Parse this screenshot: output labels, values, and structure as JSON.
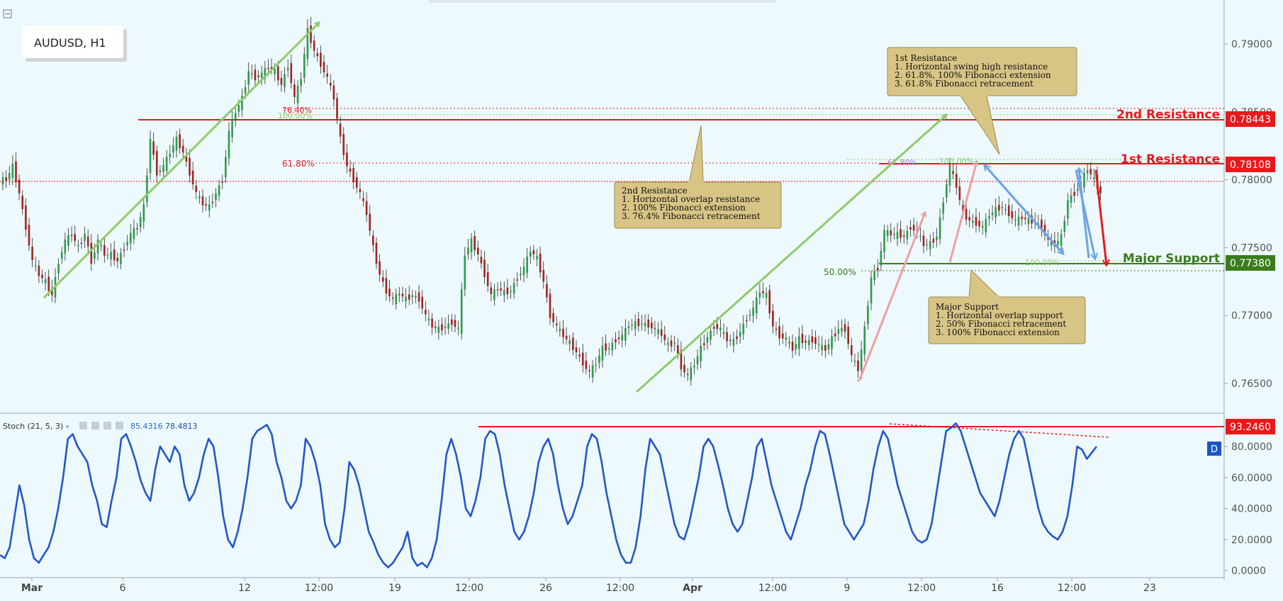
{
  "symbol_label": "AUDUSD, H1",
  "indicator": {
    "name": "Stoch (21, 5, 3)",
    "value1": "85.4316",
    "value2": "78.4813",
    "d_badge": "D"
  },
  "levels": {
    "second_resistance": {
      "label": "2nd Resistance",
      "value": "0.78443",
      "color": "#e8191b"
    },
    "first_resistance": {
      "label": "1st Resistance",
      "value": "0.78108",
      "color": "#e8191b"
    },
    "major_support": {
      "label": "Major Support",
      "value": "0.77380",
      "color": "#3a7d1c"
    },
    "stoch_level": {
      "value": "93.2460",
      "color": "#e8191b"
    }
  },
  "fib_labels": {
    "left_764": "76.40%",
    "left_100": "100.00%",
    "left_618": "61.80%",
    "right_618": "61.80%",
    "right_100_top": "100.00%",
    "right_50": "50.00%",
    "right_100_bottom": "100.00%"
  },
  "callouts": {
    "first": {
      "lines": [
        "1st Resistance",
        "1. Horizontal swing high resistance",
        "2. 61.8%, 100% Fibonacci extension",
        "3. 61.8% Fibonacci retracement"
      ]
    },
    "second": {
      "lines": [
        "2nd Resistance",
        "1. Horizontal overlap resistance",
        "2. 100% Fibonacci extension",
        "3. 76.4% Fibonacci retracement"
      ]
    },
    "support": {
      "lines": [
        "Major Support",
        "1. Horizontal overlap support",
        "2. 50% Fibonacci retracement",
        "3. 100% Fibonacci extension"
      ]
    }
  },
  "colors": {
    "background": "#edf9fc",
    "candle_up": "#2e9a4a",
    "candle_down": "#a3221e",
    "stoch_line": "#2456c9",
    "callout_fill": "#d8c585",
    "green_arrow": "#8fca6a",
    "pink_arrow": "#eea0a2",
    "blue_arrow": "#6fa3e8"
  },
  "chart_data": [
    {
      "type": "candlestick",
      "title": "AUDUSD, H1",
      "y_axis_ticks": [
        "0.79000",
        "0.78500",
        "0.78000",
        "0.77500",
        "0.77000",
        "0.76500"
      ],
      "ylim": [
        0.7628,
        0.7925
      ],
      "x_tick_labels": [
        "Mar",
        "6",
        "12",
        "12:00",
        "19",
        "12:00",
        "26",
        "12:00",
        "Apr",
        "12:00",
        "9",
        "12:00",
        "16",
        "12:00",
        "23"
      ],
      "series": [
        {
          "name": "AUDUSD",
          "values": [
            0.78,
            0.781,
            0.779,
            0.7765,
            0.774,
            0.773,
            0.7725,
            0.7715,
            0.774,
            0.7755,
            0.776,
            0.775,
            0.776,
            0.774,
            0.7755,
            0.7745,
            0.7745,
            0.774,
            0.775,
            0.776,
            0.7765,
            0.778,
            0.783,
            0.7805,
            0.781,
            0.782,
            0.783,
            0.782,
            0.7805,
            0.779,
            0.7782,
            0.778,
            0.779,
            0.78,
            0.7835,
            0.785,
            0.786,
            0.788,
            0.7875,
            0.7878,
            0.7883,
            0.788,
            0.787,
            0.7884,
            0.786,
            0.7875,
            0.791,
            0.7895,
            0.7885,
            0.7875,
            0.786,
            0.783,
            0.781,
            0.78,
            0.779,
            0.7775,
            0.775,
            0.773,
            0.7718,
            0.7712,
            0.7716,
            0.7712,
            0.7715,
            0.7712,
            0.77,
            0.7692,
            0.769,
            0.7692,
            0.7695,
            0.769,
            0.7745,
            0.7755,
            0.7745,
            0.773,
            0.7715,
            0.772,
            0.7717,
            0.7718,
            0.7728,
            0.7735,
            0.7748,
            0.7742,
            0.7725,
            0.77,
            0.7692,
            0.7685,
            0.768,
            0.7673,
            0.7665,
            0.7658,
            0.7665,
            0.7676,
            0.7676,
            0.7682,
            0.7685,
            0.7693,
            0.7694,
            0.7694,
            0.7693,
            0.769,
            0.7686,
            0.7678,
            0.768,
            0.7662,
            0.7656,
            0.7664,
            0.7676,
            0.7684,
            0.7692,
            0.769,
            0.7682,
            0.7681,
            0.7688,
            0.7698,
            0.7705,
            0.7718,
            0.7715,
            0.7692,
            0.7685,
            0.7683,
            0.7675,
            0.7683,
            0.768,
            0.7682,
            0.7678,
            0.7675,
            0.7683,
            0.769,
            0.769,
            0.767,
            0.766,
            0.769,
            0.7728,
            0.7735,
            0.7762,
            0.776,
            0.776,
            0.7758,
            0.7765,
            0.7762,
            0.7752,
            0.7753,
            0.7758,
            0.7785,
            0.781,
            0.7795,
            0.7775,
            0.777,
            0.7768,
            0.7765,
            0.7774,
            0.7778,
            0.778,
            0.7775,
            0.777,
            0.7772,
            0.777,
            0.7769,
            0.7765,
            0.7755,
            0.7752,
            0.7758,
            0.7785,
            0.779,
            0.7798,
            0.7808,
            0.78,
            0.779
          ]
        }
      ]
    },
    {
      "type": "line",
      "title": "Stoch (21, 5, 3)",
      "y_axis_ticks": [
        "80.0000",
        "60.0000",
        "40.0000",
        "20.0000",
        "0.0000"
      ],
      "ylim": [
        -2,
        106
      ],
      "series": [
        {
          "name": "Stoch",
          "values": [
            10,
            8,
            15,
            35,
            55,
            42,
            20,
            8,
            5,
            10,
            15,
            25,
            40,
            60,
            85,
            88,
            80,
            75,
            70,
            55,
            45,
            30,
            28,
            45,
            60,
            85,
            88,
            80,
            70,
            58,
            50,
            45,
            65,
            80,
            75,
            70,
            80,
            75,
            55,
            45,
            50,
            60,
            75,
            85,
            80,
            60,
            35,
            20,
            15,
            25,
            40,
            60,
            85,
            90,
            92,
            94,
            88,
            70,
            60,
            45,
            40,
            45,
            55,
            85,
            80,
            70,
            55,
            30,
            20,
            15,
            18,
            40,
            70,
            65,
            55,
            40,
            25,
            18,
            10,
            5,
            2,
            5,
            10,
            15,
            25,
            8,
            3,
            5,
            2,
            8,
            20,
            45,
            75,
            85,
            75,
            60,
            40,
            35,
            45,
            60,
            85,
            90,
            88,
            75,
            55,
            40,
            25,
            20,
            25,
            35,
            50,
            70,
            80,
            85,
            75,
            55,
            40,
            30,
            35,
            45,
            55,
            80,
            88,
            85,
            70,
            50,
            35,
            20,
            10,
            5,
            5,
            15,
            35,
            65,
            85,
            80,
            75,
            60,
            45,
            30,
            22,
            20,
            30,
            45,
            60,
            80,
            85,
            80,
            68,
            55,
            40,
            30,
            25,
            30,
            45,
            60,
            80,
            85,
            70,
            55,
            45,
            35,
            25,
            20,
            30,
            40,
            55,
            65,
            80,
            90,
            88,
            75,
            60,
            45,
            30,
            25,
            20,
            25,
            30,
            45,
            65,
            80,
            90,
            85,
            70,
            55,
            45,
            35,
            25,
            20,
            18,
            20,
            30,
            50,
            70,
            90,
            92,
            95,
            90,
            80,
            70,
            60,
            50,
            45,
            40,
            35,
            45,
            60,
            75,
            85,
            90,
            85,
            70,
            55,
            40,
            30,
            25,
            22,
            20,
            25,
            35,
            55,
            80,
            78,
            72,
            76,
            80
          ]
        }
      ]
    }
  ]
}
